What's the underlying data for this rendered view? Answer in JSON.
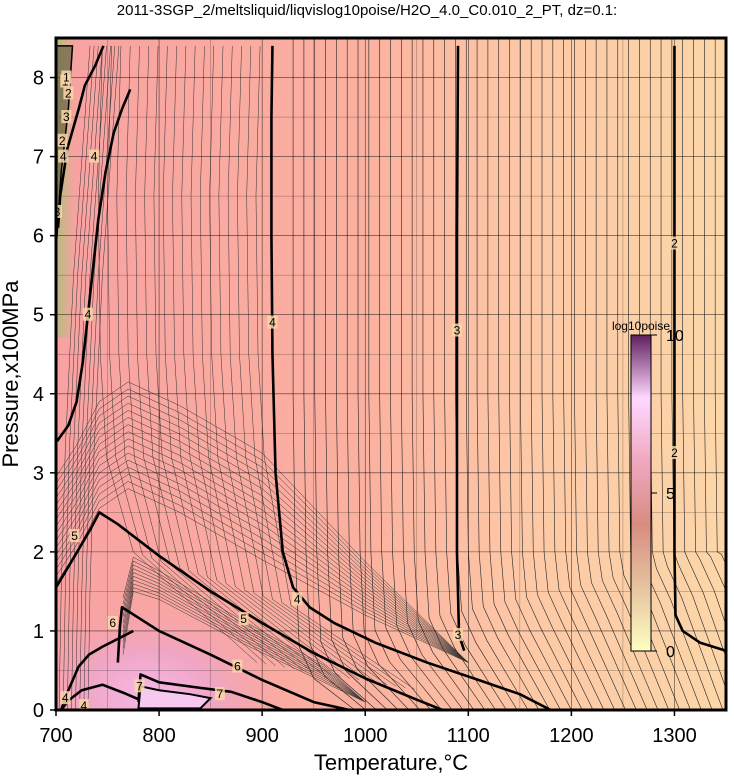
{
  "title": "2011-3SGP_2/meltsliquid/liqvislog10poise/H2O_4.0_C0.010_2_PT, dz=0.1:",
  "chart_data": {
    "type": "heatmap",
    "xlabel": "Temperature,°C",
    "ylabel": "Pressure,x100MPa",
    "xlim": [
      700,
      1350
    ],
    "ylim": [
      0,
      8.5
    ],
    "xticks": [
      700,
      800,
      900,
      1000,
      1100,
      1200,
      1300
    ],
    "yticks": [
      0,
      1,
      2,
      3,
      4,
      5,
      6,
      7,
      8
    ],
    "grid": true,
    "colorbar": {
      "label": "log10poise",
      "range": [
        0,
        10
      ],
      "ticks": [
        0,
        5,
        10
      ],
      "colors": [
        "#ffffc0",
        "#e6c3a0",
        "#d88c80",
        "#f0a8c0",
        "#ffd8ff",
        "#602060"
      ]
    },
    "contour_interval": 0.1,
    "contours": [
      {
        "level": 4,
        "x": [
          702,
          704,
          711,
          722,
          728,
          738,
          746
        ],
        "y": [
          6.1,
          6.5,
          7.1,
          7.6,
          7.9,
          8.15,
          8.4
        ]
      },
      {
        "level": 4,
        "x": [
          701,
          712,
          720,
          726,
          731,
          736,
          741,
          748,
          756,
          764,
          772
        ],
        "y": [
          3.4,
          3.6,
          3.9,
          4.4,
          5.0,
          5.6,
          6.2,
          6.8,
          7.3,
          7.6,
          7.85
        ]
      },
      {
        "level": 4,
        "x": [
          910,
          909,
          909,
          910,
          913,
          920,
          930,
          946,
          970,
          1010,
          1060,
          1110,
          1150,
          1180
        ],
        "y": [
          8.4,
          7.5,
          6.0,
          4.5,
          3.0,
          2.0,
          1.55,
          1.3,
          1.1,
          0.85,
          0.6,
          0.38,
          0.2,
          0.0
        ]
      },
      {
        "level": 3,
        "x": [
          1090,
          1089,
          1089,
          1089,
          1091,
          1096
        ],
        "y": [
          8.4,
          6.0,
          4.0,
          2.0,
          0.95,
          0.75
        ]
      },
      {
        "level": 2,
        "x": [
          1300,
          1300,
          1300,
          1300,
          1301,
          1308,
          1325,
          1350
        ],
        "y": [
          8.4,
          6.0,
          4.0,
          2.0,
          1.2,
          1.0,
          0.85,
          0.75
        ]
      },
      {
        "level": 5,
        "x": [
          700,
          716,
          734,
          742,
          760,
          800,
          850,
          900,
          950,
          1000,
          1050,
          1075
        ],
        "y": [
          1.55,
          1.9,
          2.3,
          2.5,
          2.35,
          1.95,
          1.5,
          1.1,
          0.72,
          0.4,
          0.13,
          0.0
        ]
      },
      {
        "level": 6,
        "x": [
          760,
          762,
          764,
          770,
          800,
          850,
          900,
          950,
          985
        ],
        "y": [
          0.6,
          1.05,
          1.3,
          1.25,
          1.0,
          0.7,
          0.38,
          0.1,
          0.0
        ]
      },
      {
        "level": 7,
        "x": [
          780,
          782,
          800,
          840,
          870,
          900,
          920
        ],
        "y": [
          0.1,
          0.45,
          0.35,
          0.28,
          0.23,
          0.1,
          0.0
        ]
      },
      {
        "level": 3,
        "x": [
          705,
          712,
          722,
          732,
          745,
          760,
          775
        ],
        "y": [
          0.0,
          0.25,
          0.55,
          0.7,
          0.8,
          0.9,
          1.0
        ]
      },
      {
        "level": 2,
        "x": [
          705,
          712,
          725,
          745,
          765,
          790,
          800
        ],
        "y": [
          0.0,
          0.12,
          0.25,
          0.32,
          0.22,
          0.08,
          0.0
        ]
      }
    ],
    "labels": [
      {
        "text": "4",
        "x": 707,
        "y": 7.0
      },
      {
        "text": "3",
        "x": 701,
        "y": 6.3
      },
      {
        "text": "2",
        "x": 706,
        "y": 7.2
      },
      {
        "text": "3",
        "x": 710,
        "y": 7.5
      },
      {
        "text": "2",
        "x": 712,
        "y": 7.8
      },
      {
        "text": "1",
        "x": 709,
        "y": 7.95
      },
      {
        "text": "1",
        "x": 710,
        "y": 8.0
      },
      {
        "text": "4",
        "x": 737,
        "y": 7.0
      },
      {
        "text": "4",
        "x": 731,
        "y": 5.0
      },
      {
        "text": "4",
        "x": 910,
        "y": 4.9
      },
      {
        "text": "4",
        "x": 934,
        "y": 1.4
      },
      {
        "text": "3",
        "x": 1089,
        "y": 4.8
      },
      {
        "text": "3",
        "x": 1090,
        "y": 0.95
      },
      {
        "text": "2",
        "x": 1300,
        "y": 5.9
      },
      {
        "text": "2",
        "x": 1300,
        "y": 3.25
      },
      {
        "text": "5",
        "x": 718,
        "y": 2.2
      },
      {
        "text": "5",
        "x": 882,
        "y": 1.15
      },
      {
        "text": "6",
        "x": 755,
        "y": 1.1
      },
      {
        "text": "6",
        "x": 876,
        "y": 0.55
      },
      {
        "text": "7",
        "x": 781,
        "y": 0.3
      },
      {
        "text": "7",
        "x": 859,
        "y": 0.2
      },
      {
        "text": "4",
        "x": 709,
        "y": 0.15
      },
      {
        "text": "4",
        "x": 727,
        "y": 0.05
      }
    ]
  }
}
